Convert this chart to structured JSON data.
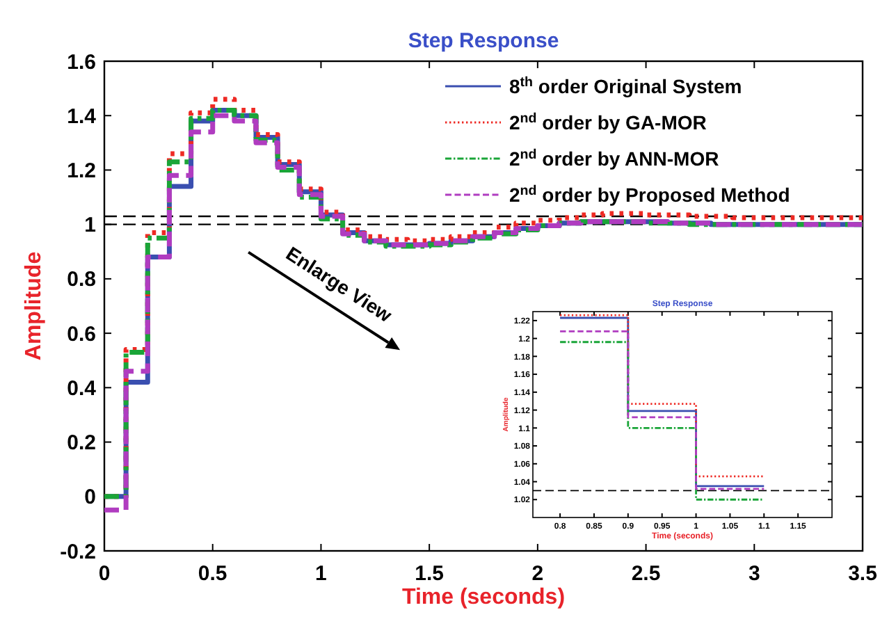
{
  "chart_data": [
    {
      "type": "step",
      "title": "Step Response",
      "xlabel": "Time (seconds)",
      "ylabel": "Amplitude",
      "xlim": [
        0,
        3.5
      ],
      "ylim": [
        -0.2,
        1.6
      ],
      "xticks": [
        0,
        0.5,
        1,
        1.5,
        2,
        2.5,
        3,
        3.5
      ],
      "yticks": [
        -0.2,
        0,
        0.2,
        0.4,
        0.6,
        0.8,
        1,
        1.2,
        1.4,
        1.6
      ],
      "legend": "top right",
      "x": [
        0,
        0.1,
        0.2,
        0.3,
        0.4,
        0.5,
        0.6,
        0.7,
        0.8,
        0.9,
        1,
        1.1,
        1.2,
        1.3,
        1.4,
        1.5,
        1.6,
        1.7,
        1.8,
        1.9,
        2,
        2.1,
        2.2,
        2.3,
        2.4,
        2.5,
        2.6,
        2.7,
        2.8,
        2.9,
        3,
        3.1,
        3.2,
        3.3,
        3.4,
        3.5
      ],
      "series": [
        {
          "name": "8$^{th}$ order Original System",
          "color": "#3a4fb0",
          "line_style": "solid",
          "values": [
            0,
            0.42,
            0.88,
            1.14,
            1.38,
            1.42,
            1.4,
            1.32,
            1.22,
            1.12,
            1.035,
            0.97,
            0.94,
            0.925,
            0.925,
            0.93,
            0.94,
            0.955,
            0.97,
            0.985,
            0.995,
            1.005,
            1.01,
            1.01,
            1.01,
            1.01,
            1.005,
            1.005,
            1.0,
            1.0,
            1.0,
            1.0,
            1.0,
            1.0,
            1.0,
            1.0
          ]
        },
        {
          "name": "2$^{nd}$ order by GA-MOR",
          "color": "#ee2a24",
          "line_style": "dotted",
          "values": [
            0,
            0.54,
            0.97,
            1.26,
            1.41,
            1.46,
            1.42,
            1.33,
            1.23,
            1.13,
            1.045,
            0.98,
            0.955,
            0.945,
            0.94,
            0.945,
            0.955,
            0.97,
            0.99,
            1.005,
            1.015,
            1.025,
            1.035,
            1.04,
            1.04,
            1.035,
            1.035,
            1.03,
            1.03,
            1.025,
            1.025,
            1.025,
            1.025,
            1.025,
            1.025,
            1.025
          ]
        },
        {
          "name": "2$^{nd}$ order by ANN-MOR",
          "color": "#1aa538",
          "line_style": "dashdot",
          "values": [
            0,
            0.53,
            0.95,
            1.23,
            1.39,
            1.42,
            1.4,
            1.31,
            1.2,
            1.1,
            1.02,
            0.96,
            0.935,
            0.92,
            0.92,
            0.925,
            0.935,
            0.95,
            0.965,
            0.98,
            0.995,
            1.005,
            1.01,
            1.01,
            1.01,
            1.005,
            1.005,
            1.0,
            1.0,
            1.0,
            1.0,
            1.0,
            1.0,
            1.0,
            1.0,
            1.0
          ]
        },
        {
          "name": "2$^{nd}$ order by Proposed Method",
          "color": "#b03cc0",
          "line_style": "dashed",
          "values": [
            -0.05,
            0.46,
            0.88,
            1.18,
            1.34,
            1.4,
            1.38,
            1.3,
            1.21,
            1.11,
            1.03,
            0.965,
            0.94,
            0.925,
            0.925,
            0.93,
            0.94,
            0.955,
            0.97,
            0.985,
            0.995,
            1.005,
            1.01,
            1.01,
            1.01,
            1.01,
            1.005,
            1.005,
            1.0,
            1.0,
            1.0,
            1.0,
            1.0,
            1.0,
            1.0,
            1.0
          ]
        }
      ],
      "ref_lines": [
        {
          "axis": "y",
          "value": 1,
          "color": "#000000",
          "line_style": "dashed"
        },
        {
          "axis": "y",
          "value": 1.03,
          "color": "#000000",
          "line_style": "dashed"
        }
      ],
      "annotations": [
        "Enlarge View"
      ]
    },
    {
      "type": "step",
      "title": "Step Response",
      "xlabel": "Time (seconds)",
      "ylabel": "Amplitude",
      "xlim": [
        0.76,
        1.2
      ],
      "ylim": [
        1,
        1.23
      ],
      "xticks": [
        0.8,
        0.85,
        0.9,
        0.95,
        1,
        1.05,
        1.1,
        1.15
      ],
      "yticks": [
        1.02,
        1.04,
        1.06,
        1.08,
        1.1,
        1.12,
        1.14,
        1.16,
        1.18,
        1.2,
        1.22
      ],
      "legend": false,
      "x": [
        0.8,
        0.9,
        1,
        1.1
      ],
      "series": [
        {
          "color": "#3a4fb0",
          "line_style": "solid",
          "values": [
            1.223,
            1.119,
            1.035,
            1.035
          ]
        },
        {
          "color": "#ee2a24",
          "line_style": "dotted",
          "values": [
            1.226,
            1.127,
            1.046,
            1.046
          ]
        },
        {
          "color": "#1aa538",
          "line_style": "dashdot",
          "values": [
            1.196,
            1.1,
            1.02,
            1.02
          ]
        },
        {
          "color": "#b03cc0",
          "line_style": "dashed",
          "values": [
            1.208,
            1.112,
            1.032,
            1.032
          ]
        }
      ],
      "ref_lines": [
        {
          "axis": "y",
          "value": 1.03,
          "color": "#000000",
          "line_style": "dashed"
        }
      ]
    }
  ]
}
